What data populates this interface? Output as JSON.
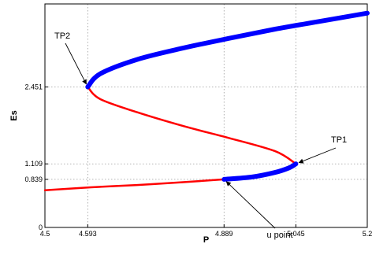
{
  "chart_data": {
    "type": "line",
    "xlabel": "P",
    "ylabel": "Es",
    "xlim": [
      4.5,
      5.2
    ],
    "ylim": [
      0,
      3.9
    ],
    "xticks": [
      4.5,
      4.593,
      4.889,
      5.045,
      5.2
    ],
    "xtick_labels": [
      "4.5",
      "4.593",
      "4.889",
      "5.045",
      "5.2"
    ],
    "yticks": [
      0,
      0.839,
      1.109,
      2.451
    ],
    "ytick_labels": [
      "0",
      "0.839",
      "1.109",
      "2.451"
    ],
    "grid": true,
    "series": [
      {
        "color": "#ff0000",
        "style": "thin",
        "points": [
          [
            4.5,
            0.65
          ],
          [
            4.6,
            0.7
          ],
          [
            4.7,
            0.74
          ],
          [
            4.8,
            0.79
          ],
          [
            4.889,
            0.839
          ]
        ]
      },
      {
        "color": "#0000ff",
        "style": "thick",
        "points": [
          [
            4.889,
            0.839
          ],
          [
            4.95,
            0.88
          ],
          [
            5.0,
            0.96
          ],
          [
            5.03,
            1.04
          ],
          [
            5.045,
            1.109
          ]
        ]
      },
      {
        "color": "#ff0000",
        "style": "thin",
        "points": [
          [
            5.045,
            1.109
          ],
          [
            5.0,
            1.33
          ],
          [
            4.9,
            1.56
          ],
          [
            4.8,
            1.77
          ],
          [
            4.7,
            2.01
          ],
          [
            4.62,
            2.24
          ],
          [
            4.593,
            2.451
          ]
        ]
      },
      {
        "color": "#0000ff",
        "style": "thick",
        "points": [
          [
            4.593,
            2.451
          ],
          [
            4.62,
            2.68
          ],
          [
            4.7,
            2.93
          ],
          [
            4.8,
            3.13
          ],
          [
            4.9,
            3.3
          ],
          [
            5.0,
            3.46
          ],
          [
            5.1,
            3.6
          ],
          [
            5.2,
            3.74
          ]
        ]
      }
    ],
    "annotations": [
      {
        "label": "TP2",
        "target": [
          4.593,
          2.451
        ]
      },
      {
        "label": "TP1",
        "target": [
          5.045,
          1.109
        ]
      },
      {
        "label": "u point",
        "target": [
          4.889,
          0.839
        ]
      }
    ]
  }
}
